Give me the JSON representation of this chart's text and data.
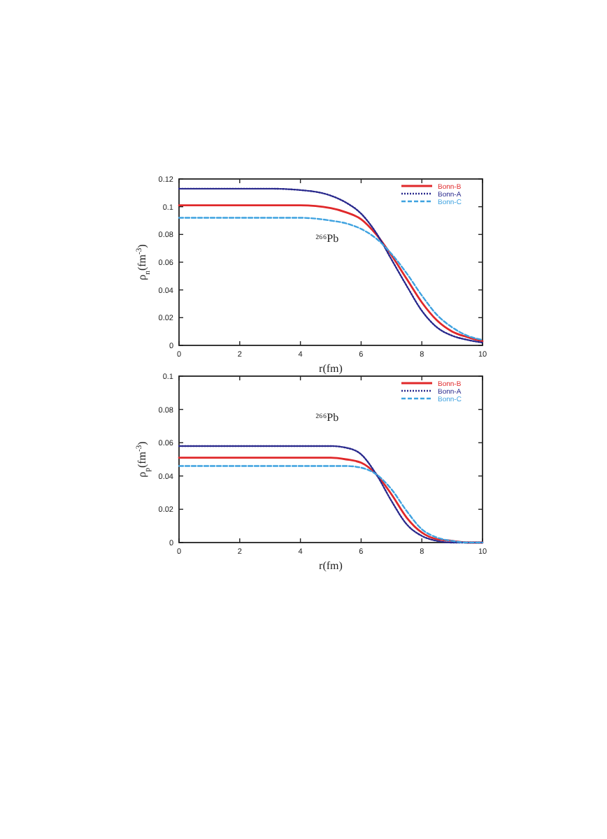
{
  "chart_data": [
    {
      "type": "line",
      "x": [
        0,
        1,
        2,
        3,
        4,
        5,
        5.5,
        6,
        6.5,
        7,
        7.5,
        8,
        8.5,
        9,
        9.5,
        10
      ],
      "xlim": [
        0,
        10
      ],
      "xticks": [
        0,
        2,
        4,
        6,
        8,
        10
      ],
      "ylim": [
        0,
        0.12
      ],
      "yticks": [
        0,
        0.02,
        0.04,
        0.06,
        0.08,
        0.1,
        0.12
      ],
      "xlabel": "r(fm)",
      "ylabel": "ρ$_{n}$(fm$^{-3}$)",
      "legend": "top right",
      "annotations": [
        "²⁶⁶Pb"
      ],
      "series": [
        {
          "name": "Bonn-B",
          "color": "#e0282a",
          "line_style": "solid",
          "values": [
            0.101,
            0.101,
            0.101,
            0.101,
            0.101,
            0.099,
            0.096,
            0.091,
            0.08,
            0.065,
            0.048,
            0.031,
            0.018,
            0.01,
            0.006,
            0.003
          ]
        },
        {
          "name": "Bonn-A",
          "color": "#28288c",
          "line_style": "dotted",
          "values": [
            0.113,
            0.113,
            0.113,
            0.113,
            0.112,
            0.108,
            0.103,
            0.095,
            0.081,
            0.062,
            0.043,
            0.025,
            0.013,
            0.007,
            0.004,
            0.002
          ]
        },
        {
          "name": "Bonn-C",
          "color": "#3ea2e0",
          "line_style": "dashed",
          "values": [
            0.092,
            0.092,
            0.092,
            0.092,
            0.092,
            0.09,
            0.088,
            0.084,
            0.077,
            0.066,
            0.052,
            0.036,
            0.022,
            0.013,
            0.007,
            0.004
          ]
        }
      ]
    },
    {
      "type": "line",
      "x": [
        0,
        1,
        2,
        3,
        4,
        5,
        5.5,
        6,
        6.5,
        7,
        7.5,
        8,
        8.5,
        9,
        9.5,
        10
      ],
      "xlim": [
        0,
        10
      ],
      "xticks": [
        0,
        2,
        4,
        6,
        8,
        10
      ],
      "ylim": [
        0,
        0.1
      ],
      "yticks": [
        0,
        0.02,
        0.04,
        0.06,
        0.08,
        0.1
      ],
      "xlabel": "r(fm)",
      "ylabel": "ρ$_{p}$(fm$^{-3}$)",
      "legend": "top right",
      "annotations": [
        "²⁶⁶Pb"
      ],
      "series": [
        {
          "name": "Bonn-B",
          "color": "#e0282a",
          "line_style": "solid",
          "values": [
            0.051,
            0.051,
            0.051,
            0.051,
            0.051,
            0.051,
            0.05,
            0.048,
            0.041,
            0.029,
            0.015,
            0.006,
            0.002,
            0.001,
            0,
            0
          ]
        },
        {
          "name": "Bonn-A",
          "color": "#28288c",
          "line_style": "dotted",
          "values": [
            0.058,
            0.058,
            0.058,
            0.058,
            0.058,
            0.058,
            0.057,
            0.053,
            0.041,
            0.025,
            0.011,
            0.004,
            0.001,
            0,
            0,
            0
          ]
        },
        {
          "name": "Bonn-C",
          "color": "#3ea2e0",
          "line_style": "dashed",
          "values": [
            0.046,
            0.046,
            0.046,
            0.046,
            0.046,
            0.046,
            0.046,
            0.045,
            0.041,
            0.032,
            0.019,
            0.008,
            0.003,
            0.001,
            0,
            0
          ]
        }
      ]
    }
  ]
}
